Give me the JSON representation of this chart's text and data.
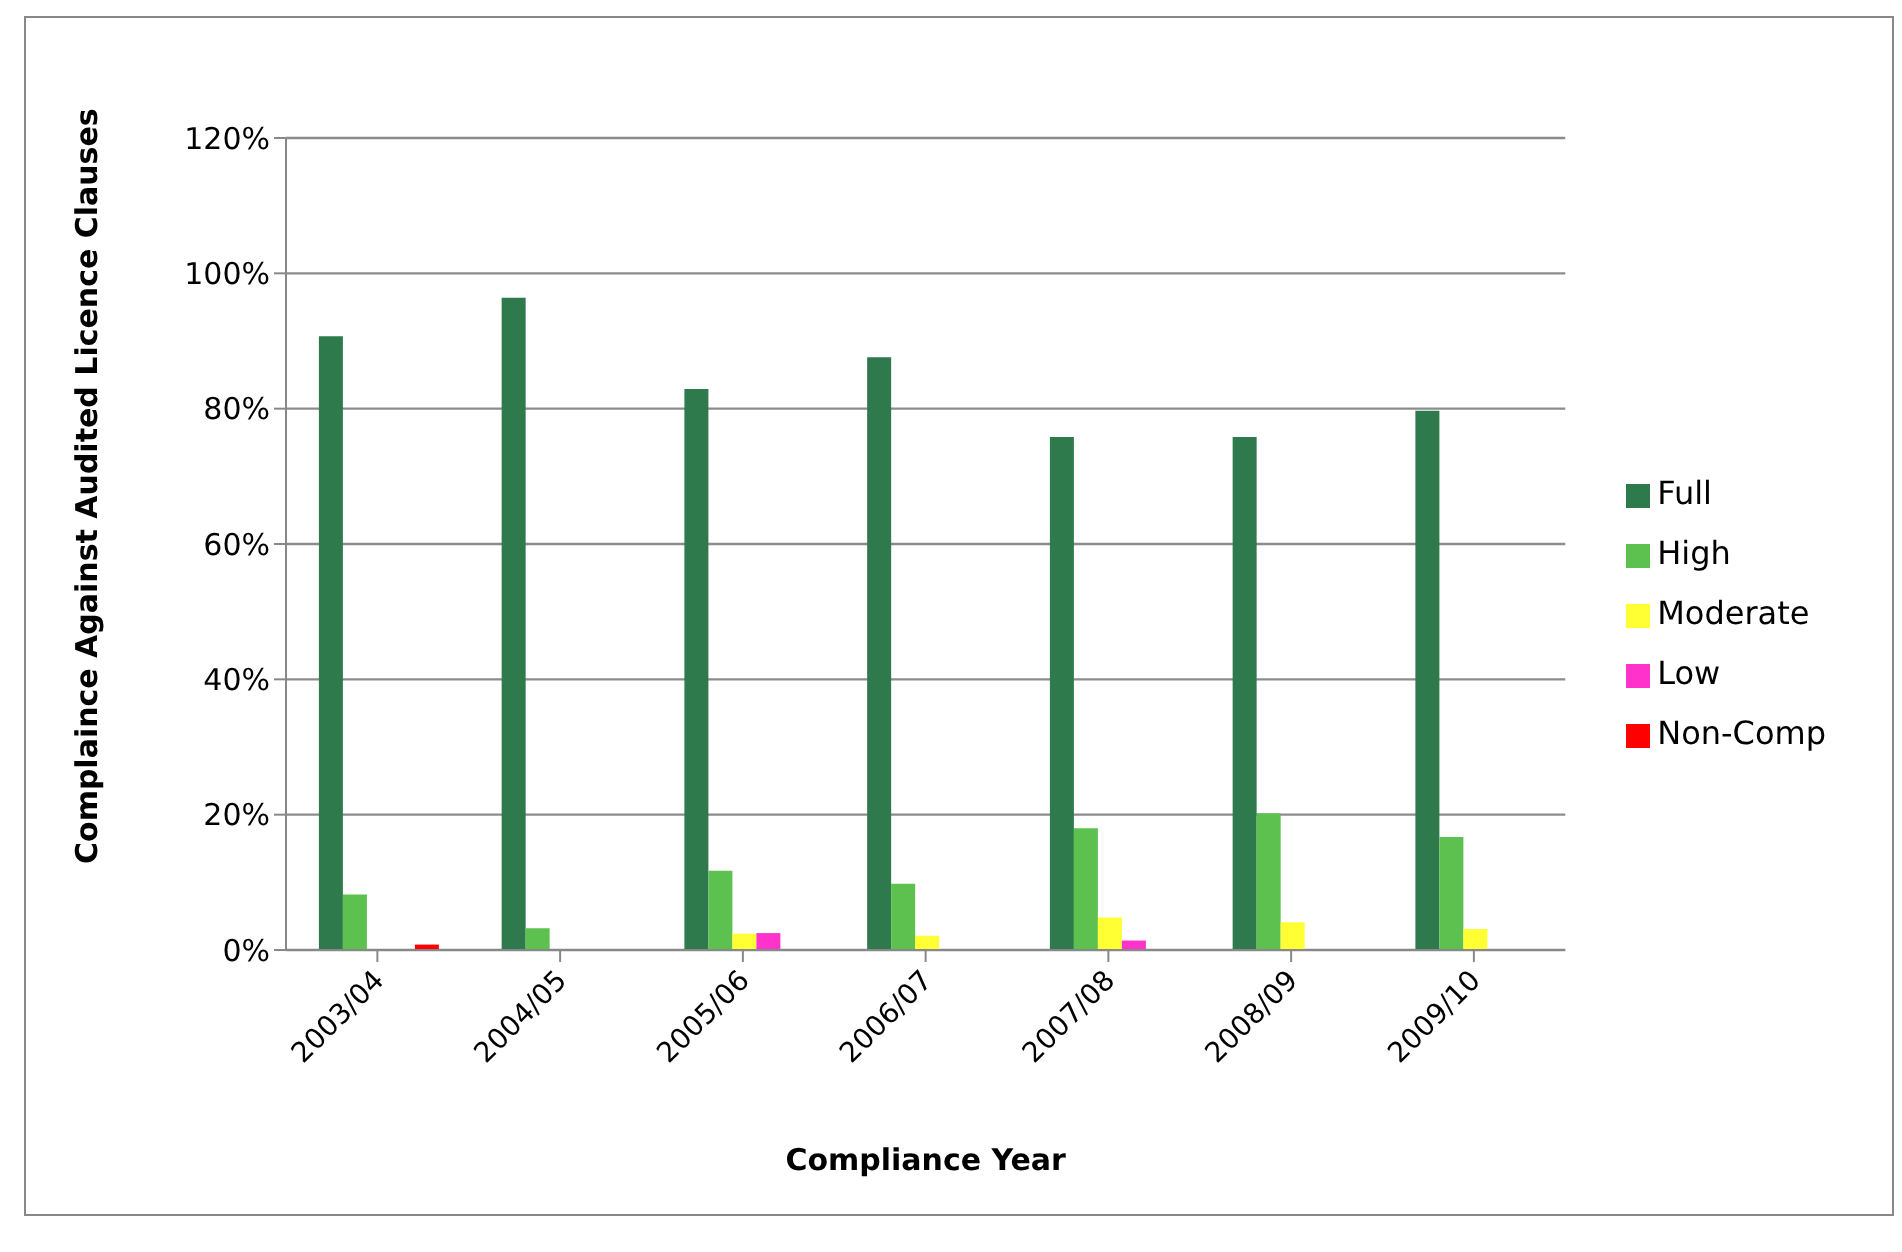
{
  "chart_data": {
    "type": "bar",
    "xlabel": "Compliance Year",
    "ylabel": "Complaince Against Audited Licence Clauses",
    "categories": [
      "2003/04",
      "2004/05",
      "2005/06",
      "2006/07",
      "2007/08",
      "2008/09",
      "2009/10"
    ],
    "series": [
      {
        "name": "Full",
        "color": "#2e7a4c",
        "values": [
          90.7,
          96.4,
          82.9,
          87.6,
          75.8,
          75.8,
          79.7
        ]
      },
      {
        "name": "High",
        "color": "#5dc150",
        "values": [
          8.2,
          3.2,
          11.7,
          9.8,
          18.0,
          20.2,
          16.7
        ]
      },
      {
        "name": "Moderate",
        "color": "#ffff33",
        "values": [
          0,
          0,
          2.4,
          2.1,
          4.8,
          4.1,
          3.1
        ]
      },
      {
        "name": "Low",
        "color": "#ff33cc",
        "values": [
          0,
          0,
          2.5,
          0,
          1.4,
          0,
          0
        ]
      },
      {
        "name": "Non-Comp",
        "color": "#ff0000",
        "values": [
          0.8,
          0,
          0,
          0,
          0,
          0,
          0
        ]
      }
    ],
    "ylim": [
      0,
      120
    ],
    "yticks": [
      {
        "value": 0,
        "label": "0%"
      },
      {
        "value": 20,
        "label": "20%"
      },
      {
        "value": 40,
        "label": "40%"
      },
      {
        "value": 60,
        "label": "60%"
      },
      {
        "value": 80,
        "label": "80%"
      },
      {
        "value": 100,
        "label": "100%"
      },
      {
        "value": 120,
        "label": "120%"
      }
    ],
    "grid": "y",
    "legend": "right"
  }
}
